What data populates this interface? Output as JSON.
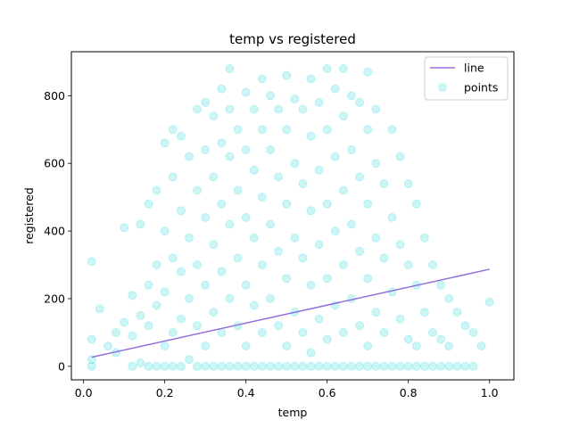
{
  "chart_data": {
    "type": "scatter",
    "title": "temp vs registered",
    "xlabel": "temp",
    "ylabel": "registered",
    "xlim": [
      -0.03,
      1.06
    ],
    "ylim": [
      -40,
      930
    ],
    "xticks": [
      0.0,
      0.2,
      0.4,
      0.6,
      0.8,
      1.0
    ],
    "xtick_labels": [
      "0.0",
      "0.2",
      "0.4",
      "0.6",
      "0.8",
      "1.0"
    ],
    "yticks": [
      0,
      200,
      400,
      600,
      800
    ],
    "ytick_labels": [
      "0",
      "200",
      "400",
      "600",
      "800"
    ],
    "grid": false,
    "legend_position": "top-right",
    "series": [
      {
        "name": "line",
        "kind": "line",
        "color": "#9370db",
        "x": [
          0.02,
          1.0
        ],
        "y": [
          27,
          287
        ]
      },
      {
        "name": "points",
        "kind": "scatter",
        "color": "#00ced1",
        "alpha": 0.2,
        "x": [
          0.02,
          0.02,
          0.02,
          0.02,
          0.04,
          0.06,
          0.08,
          0.08,
          0.1,
          0.1,
          0.12,
          0.12,
          0.12,
          0.14,
          0.14,
          0.14,
          0.16,
          0.16,
          0.16,
          0.16,
          0.18,
          0.18,
          0.18,
          0.18,
          0.2,
          0.2,
          0.2,
          0.2,
          0.2,
          0.22,
          0.22,
          0.22,
          0.22,
          0.22,
          0.24,
          0.24,
          0.24,
          0.24,
          0.24,
          0.26,
          0.26,
          0.26,
          0.26,
          0.28,
          0.28,
          0.28,
          0.28,
          0.28,
          0.3,
          0.3,
          0.3,
          0.3,
          0.3,
          0.3,
          0.32,
          0.32,
          0.32,
          0.32,
          0.32,
          0.34,
          0.34,
          0.34,
          0.34,
          0.34,
          0.34,
          0.36,
          0.36,
          0.36,
          0.36,
          0.36,
          0.36,
          0.38,
          0.38,
          0.38,
          0.38,
          0.38,
          0.4,
          0.4,
          0.4,
          0.4,
          0.4,
          0.4,
          0.42,
          0.42,
          0.42,
          0.42,
          0.42,
          0.44,
          0.44,
          0.44,
          0.44,
          0.44,
          0.44,
          0.46,
          0.46,
          0.46,
          0.46,
          0.46,
          0.48,
          0.48,
          0.48,
          0.48,
          0.48,
          0.5,
          0.5,
          0.5,
          0.5,
          0.5,
          0.5,
          0.52,
          0.52,
          0.52,
          0.52,
          0.52,
          0.54,
          0.54,
          0.54,
          0.54,
          0.54,
          0.56,
          0.56,
          0.56,
          0.56,
          0.56,
          0.56,
          0.58,
          0.58,
          0.58,
          0.58,
          0.58,
          0.6,
          0.6,
          0.6,
          0.6,
          0.6,
          0.6,
          0.62,
          0.62,
          0.62,
          0.62,
          0.62,
          0.64,
          0.64,
          0.64,
          0.64,
          0.64,
          0.64,
          0.66,
          0.66,
          0.66,
          0.66,
          0.66,
          0.68,
          0.68,
          0.68,
          0.68,
          0.68,
          0.7,
          0.7,
          0.7,
          0.7,
          0.7,
          0.7,
          0.72,
          0.72,
          0.72,
          0.72,
          0.72,
          0.74,
          0.74,
          0.74,
          0.74,
          0.76,
          0.76,
          0.76,
          0.76,
          0.78,
          0.78,
          0.78,
          0.78,
          0.8,
          0.8,
          0.8,
          0.8,
          0.82,
          0.82,
          0.82,
          0.82,
          0.84,
          0.84,
          0.84,
          0.86,
          0.86,
          0.86,
          0.88,
          0.88,
          0.88,
          0.9,
          0.9,
          0.9,
          0.92,
          0.92,
          0.94,
          0.94,
          0.96,
          0.96,
          0.98,
          1.0
        ],
        "y": [
          0,
          20,
          80,
          310,
          170,
          60,
          40,
          100,
          130,
          410,
          0,
          90,
          210,
          10,
          150,
          420,
          0,
          120,
          240,
          480,
          0,
          180,
          300,
          520,
          0,
          60,
          220,
          400,
          660,
          0,
          100,
          320,
          560,
          700,
          0,
          140,
          280,
          460,
          680,
          20,
          200,
          380,
          620,
          0,
          120,
          300,
          520,
          760,
          0,
          60,
          240,
          440,
          640,
          780,
          0,
          160,
          360,
          560,
          740,
          0,
          100,
          280,
          480,
          660,
          820,
          0,
          200,
          420,
          620,
          760,
          880,
          0,
          120,
          320,
          520,
          700,
          0,
          60,
          240,
          440,
          640,
          810,
          0,
          180,
          380,
          580,
          760,
          0,
          100,
          300,
          500,
          700,
          850,
          0,
          200,
          420,
          640,
          800,
          0,
          120,
          340,
          560,
          760,
          0,
          60,
          260,
          480,
          700,
          860,
          0,
          160,
          380,
          600,
          790,
          0,
          100,
          320,
          540,
          760,
          0,
          40,
          240,
          460,
          680,
          850,
          0,
          140,
          360,
          580,
          780,
          0,
          80,
          260,
          480,
          700,
          880,
          0,
          180,
          400,
          620,
          820,
          0,
          100,
          300,
          520,
          740,
          880,
          0,
          200,
          420,
          640,
          800,
          0,
          120,
          340,
          560,
          780,
          0,
          60,
          260,
          480,
          700,
          870,
          0,
          160,
          380,
          600,
          760,
          0,
          100,
          320,
          540,
          0,
          220,
          440,
          700,
          0,
          140,
          360,
          620,
          0,
          80,
          300,
          540,
          0,
          60,
          240,
          480,
          0,
          160,
          380,
          0,
          100,
          300,
          0,
          80,
          240,
          0,
          60,
          200,
          0,
          160,
          0,
          120,
          0,
          100,
          60,
          190
        ]
      }
    ]
  }
}
